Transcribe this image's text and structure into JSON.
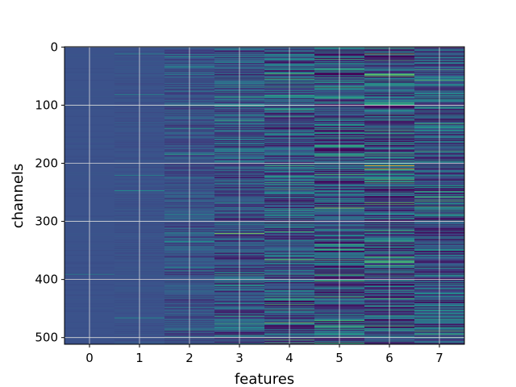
{
  "chart_data": {
    "type": "heatmap",
    "title": "",
    "xlabel": "features",
    "ylabel": "channels",
    "x_ticks": [
      "0",
      "1",
      "2",
      "3",
      "4",
      "5",
      "6",
      "7"
    ],
    "y_ticks": [
      "0",
      "100",
      "200",
      "300",
      "400",
      "500"
    ],
    "y_tick_values": [
      0,
      100,
      200,
      300,
      400,
      500
    ],
    "n_features": 8,
    "n_channels": 512,
    "xlim": [
      -0.5,
      7.5
    ],
    "ylim": [
      511.5,
      -0.5
    ],
    "grid": true,
    "colormap": "viridis",
    "colors": {
      "background": "#3b528b",
      "low": "#440154",
      "mid": "#21918c",
      "high": "#fde725",
      "grid": "#d9d9d9"
    },
    "feature_variation": [
      0.02,
      0.04,
      0.18,
      0.32,
      0.42,
      0.5,
      0.55,
      0.45
    ],
    "highlights": [
      {
        "feature": 3,
        "channel": 321,
        "value": 0.85
      },
      {
        "feature": 4,
        "channel": 475,
        "value": 0.8
      },
      {
        "feature": 5,
        "channel": 277,
        "value": 0.85
      },
      {
        "feature": 6,
        "channel": 204,
        "value": 1.0
      },
      {
        "feature": 6,
        "channel": 210,
        "value": 0.95
      },
      {
        "feature": 6,
        "channel": 12,
        "value": 0.8
      },
      {
        "feature": 6,
        "channel": 268,
        "value": 0.75
      }
    ]
  }
}
